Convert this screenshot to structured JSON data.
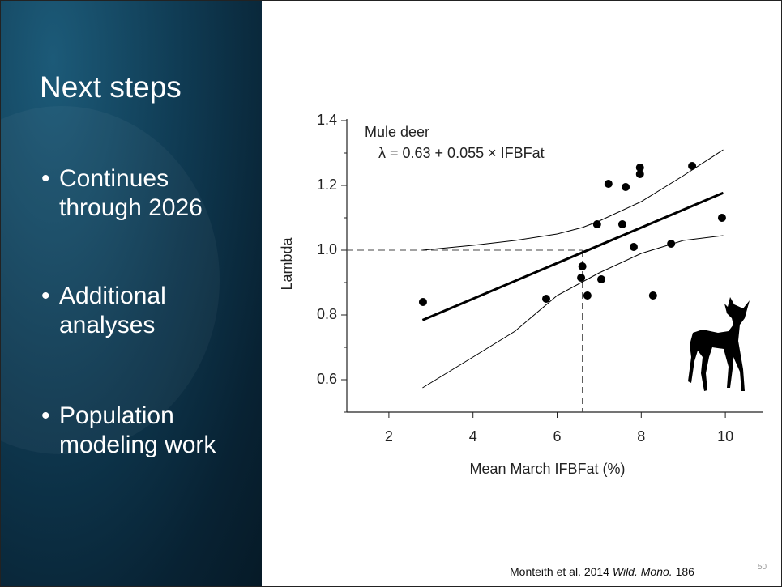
{
  "slide": {
    "title": "Next steps",
    "bullets": [
      "Continues through 2026",
      "Additional analyses",
      "Population modeling work"
    ],
    "citation": {
      "authors": "Monteith et al. 2014",
      "journal": "Wild. Mono.",
      "number": "186"
    },
    "page_number": "50"
  },
  "chart_data": {
    "type": "scatter",
    "x_label": "Mean March IFBFat (%)",
    "y_label": "Lambda",
    "annotations": [
      "Mule deer",
      "λ = 0.63 + 0.055 × IFBFat"
    ],
    "x": [
      2.81,
      5.74,
      6.6,
      6.57,
      6.72,
      7.05,
      6.95,
      7.22,
      7.63,
      7.55,
      7.82,
      7.97,
      7.97,
      8.28,
      8.71,
      9.21,
      9.92
    ],
    "values": [
      0.84,
      0.85,
      0.95,
      0.915,
      0.86,
      0.91,
      1.08,
      1.205,
      1.195,
      1.08,
      1.01,
      1.255,
      1.235,
      0.86,
      1.02,
      1.26,
      1.1
    ],
    "color": "#000000",
    "fit": {
      "x": [
        2.8,
        9.95
      ],
      "values": [
        0.784,
        1.177
      ]
    },
    "upper": {
      "x": [
        2.8,
        4,
        5,
        6,
        6.6,
        7,
        8,
        9,
        9.95
      ],
      "values": [
        1.0,
        1.015,
        1.03,
        1.05,
        1.07,
        1.09,
        1.15,
        1.23,
        1.31
      ]
    },
    "lower": {
      "x": [
        2.8,
        4,
        5,
        6,
        7,
        8,
        9,
        9.95
      ],
      "values": [
        0.575,
        0.67,
        0.75,
        0.86,
        0.93,
        0.99,
        1.03,
        1.045
      ]
    },
    "reference": {
      "x": 6.6,
      "y": 1.0
    },
    "xlim": [
      1,
      11
    ],
    "ylim": [
      0.5,
      1.4
    ],
    "xticks": [
      2,
      4,
      6,
      8,
      10
    ],
    "yticks": [
      0.6,
      0.8,
      {
        "value": 1,
        "label": "1.0"
      },
      1.2,
      1.4
    ],
    "yminor": [
      0.5,
      0.7,
      0.9,
      1.1,
      1.3
    ]
  }
}
